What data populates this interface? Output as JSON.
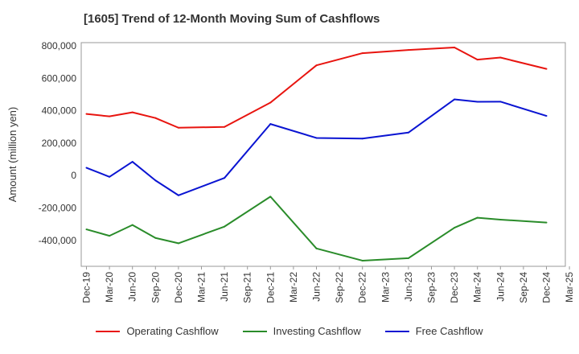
{
  "chart_data": {
    "type": "line",
    "title": "[1605]  Trend of 12-Month Moving Sum of Cashflows",
    "xlabel": "",
    "ylabel": "Amount (million yen)",
    "ylim": [
      -560000,
      820000
    ],
    "yticks": [
      -400000,
      -200000,
      0,
      200000,
      400000,
      600000,
      800000
    ],
    "ytick_labels": [
      "-400,000",
      "-200,000",
      "0",
      "200,000",
      "400,000",
      "600,000",
      "800,000"
    ],
    "categories": [
      "Dec-19",
      "Mar-20",
      "Jun-20",
      "Sep-20",
      "Dec-20",
      "Mar-21",
      "Jun-21",
      "Sep-21",
      "Dec-21",
      "Mar-22",
      "Jun-22",
      "Sep-22",
      "Dec-22",
      "Mar-23",
      "Jun-23",
      "Sep-23",
      "Dec-23",
      "Mar-24",
      "Jun-24",
      "Sep-24",
      "Dec-24",
      "Mar-25"
    ],
    "grid": true,
    "legend_position": "bottom",
    "series": [
      {
        "name": "Operating Cashflow",
        "color": "#e8140f",
        "values": [
          380000,
          365000,
          390000,
          355000,
          295000,
          null,
          300000,
          null,
          450000,
          null,
          680000,
          null,
          755000,
          null,
          775000,
          null,
          790000,
          715000,
          728000,
          null,
          658000,
          null
        ]
      },
      {
        "name": "Investing Cashflow",
        "color": "#2a8c2a",
        "values": [
          -332000,
          -372000,
          -305000,
          -385000,
          -418000,
          null,
          -315000,
          null,
          -130000,
          null,
          -450000,
          null,
          -525000,
          null,
          -510000,
          null,
          -322000,
          -260000,
          -272000,
          null,
          -290000,
          null
        ]
      },
      {
        "name": "Free Cashflow",
        "color": "#0a14d2",
        "values": [
          48000,
          -8000,
          85000,
          -30000,
          -122000,
          null,
          -15000,
          null,
          318000,
          null,
          232000,
          null,
          228000,
          null,
          265000,
          null,
          470000,
          455000,
          456000,
          null,
          368000,
          null
        ]
      }
    ]
  }
}
